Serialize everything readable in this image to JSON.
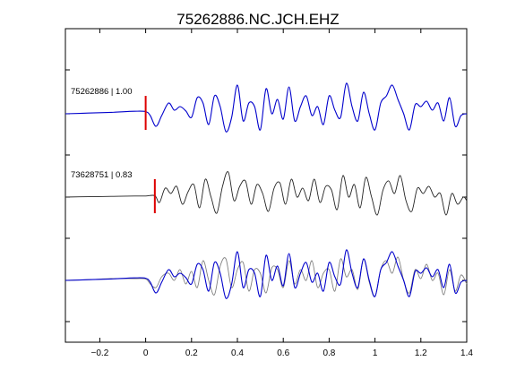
{
  "chart_data": {
    "type": "line",
    "title": "75262886.NC.JCH.EHZ",
    "xlabel": "",
    "ylabel": "",
    "xlim": [
      -0.35,
      1.4
    ],
    "xticks": [
      -0.2,
      0,
      0.2,
      0.4,
      0.6,
      0.8,
      1,
      1.2,
      1.4
    ],
    "xtick_labels": [
      "−0.2",
      "0",
      "0.2",
      "0.4",
      "0.6",
      "0.8",
      "1",
      "1.2",
      "1.4"
    ],
    "grid": false,
    "legend": "none",
    "colors": {
      "primary": "#0000cc",
      "secondary": "#222222",
      "overlay": "#808080",
      "pick": "#dd0000"
    },
    "traces": [
      {
        "label": "75262886 | 1.00",
        "pick_time": 0.0,
        "panel": 1
      },
      {
        "label": "73628751 | 0.83",
        "pick_time": 0.04,
        "panel": 2
      }
    ],
    "series": [
      {
        "color": "#0000cc",
        "panels": [
          1,
          3
        ],
        "t": [
          -0.35,
          -0.25,
          -0.15,
          -0.05,
          0.0,
          0.02,
          0.045,
          0.07,
          0.1,
          0.125,
          0.15,
          0.175,
          0.2,
          0.225,
          0.25,
          0.275,
          0.3,
          0.325,
          0.35,
          0.375,
          0.4,
          0.425,
          0.45,
          0.475,
          0.5,
          0.525,
          0.55,
          0.575,
          0.6,
          0.625,
          0.65,
          0.675,
          0.7,
          0.725,
          0.75,
          0.775,
          0.8,
          0.825,
          0.85,
          0.875,
          0.9,
          0.925,
          0.95,
          0.975,
          1.0,
          1.025,
          1.05,
          1.075,
          1.1,
          1.125,
          1.15,
          1.175,
          1.2,
          1.225,
          1.25,
          1.275,
          1.3,
          1.325,
          1.35,
          1.375,
          1.4
        ],
        "amp": [
          0.0,
          0.02,
          0.04,
          0.07,
          0.06,
          -0.05,
          -0.35,
          -0.05,
          0.3,
          0.1,
          0.2,
          0.08,
          -0.1,
          0.45,
          0.3,
          -0.3,
          0.5,
          0.2,
          -0.5,
          -0.1,
          0.8,
          -0.2,
          0.3,
          0.2,
          -0.45,
          0.7,
          0.0,
          0.4,
          -0.15,
          0.75,
          -0.2,
          0.2,
          0.5,
          -0.05,
          0.2,
          -0.3,
          0.5,
          0.1,
          -0.1,
          0.85,
          0.2,
          -0.2,
          0.6,
          0.0,
          -0.45,
          0.3,
          0.5,
          0.8,
          0.4,
          0.0,
          -0.45,
          0.25,
          0.2,
          0.35,
          0.1,
          0.3,
          -0.2,
          0.45,
          -0.35,
          -0.05,
          0.0
        ]
      },
      {
        "color": "#222222",
        "panels": [
          2
        ],
        "t": [
          -0.35,
          -0.25,
          -0.15,
          -0.05,
          0.0,
          0.04,
          0.06,
          0.085,
          0.11,
          0.135,
          0.16,
          0.185,
          0.21,
          0.235,
          0.26,
          0.285,
          0.31,
          0.335,
          0.36,
          0.385,
          0.41,
          0.435,
          0.46,
          0.485,
          0.51,
          0.535,
          0.56,
          0.585,
          0.61,
          0.635,
          0.66,
          0.685,
          0.71,
          0.735,
          0.76,
          0.785,
          0.81,
          0.835,
          0.86,
          0.885,
          0.91,
          0.935,
          0.96,
          0.985,
          1.01,
          1.035,
          1.06,
          1.085,
          1.11,
          1.135,
          1.16,
          1.185,
          1.21,
          1.235,
          1.26,
          1.285,
          1.31,
          1.335,
          1.36,
          1.385,
          1.4
        ],
        "amp": [
          0.0,
          0.01,
          0.02,
          0.03,
          0.03,
          0.04,
          -0.15,
          0.25,
          0.1,
          0.3,
          -0.2,
          0.15,
          0.35,
          -0.3,
          0.5,
          0.0,
          -0.45,
          0.3,
          0.7,
          -0.1,
          0.3,
          0.45,
          -0.2,
          0.35,
          0.1,
          -0.4,
          0.25,
          0.4,
          -0.2,
          0.5,
          0.0,
          0.25,
          -0.1,
          0.5,
          -0.15,
          0.3,
          0.2,
          -0.35,
          0.6,
          0.0,
          0.35,
          -0.3,
          0.55,
          0.0,
          -0.5,
          0.2,
          0.45,
          0.1,
          0.6,
          -0.1,
          -0.4,
          0.25,
          0.1,
          0.3,
          0.0,
          0.1,
          -0.5,
          0.1,
          -0.2,
          0.0,
          -0.1
        ]
      },
      {
        "color": "#808080",
        "panels": [
          3
        ],
        "t": [
          -0.35,
          -0.25,
          -0.15,
          -0.05,
          0.0,
          0.02,
          0.045,
          0.07,
          0.1,
          0.125,
          0.15,
          0.175,
          0.2,
          0.225,
          0.25,
          0.275,
          0.3,
          0.325,
          0.35,
          0.375,
          0.4,
          0.425,
          0.45,
          0.475,
          0.5,
          0.525,
          0.55,
          0.575,
          0.6,
          0.625,
          0.65,
          0.675,
          0.7,
          0.725,
          0.75,
          0.775,
          0.8,
          0.825,
          0.85,
          0.875,
          0.9,
          0.925,
          0.95,
          0.975,
          1.0,
          1.025,
          1.05,
          1.075,
          1.1,
          1.125,
          1.15,
          1.175,
          1.2,
          1.225,
          1.25,
          1.275,
          1.3,
          1.325,
          1.35,
          1.375,
          1.4
        ],
        "amp": [
          0.0,
          0.02,
          0.05,
          0.05,
          0.04,
          -0.1,
          -0.2,
          0.1,
          0.2,
          0.0,
          0.3,
          -0.1,
          0.25,
          -0.2,
          0.55,
          0.0,
          -0.4,
          0.4,
          0.6,
          -0.2,
          0.3,
          0.5,
          -0.3,
          0.3,
          0.2,
          -0.35,
          0.35,
          0.3,
          -0.2,
          0.55,
          -0.1,
          0.3,
          0.0,
          0.55,
          -0.2,
          0.2,
          0.3,
          -0.3,
          0.6,
          0.1,
          0.3,
          -0.25,
          0.6,
          -0.05,
          -0.45,
          0.3,
          0.55,
          0.2,
          0.65,
          0.0,
          -0.35,
          0.3,
          0.05,
          0.45,
          0.0,
          0.2,
          -0.4,
          0.3,
          -0.3,
          0.15,
          -0.1
        ]
      }
    ]
  }
}
